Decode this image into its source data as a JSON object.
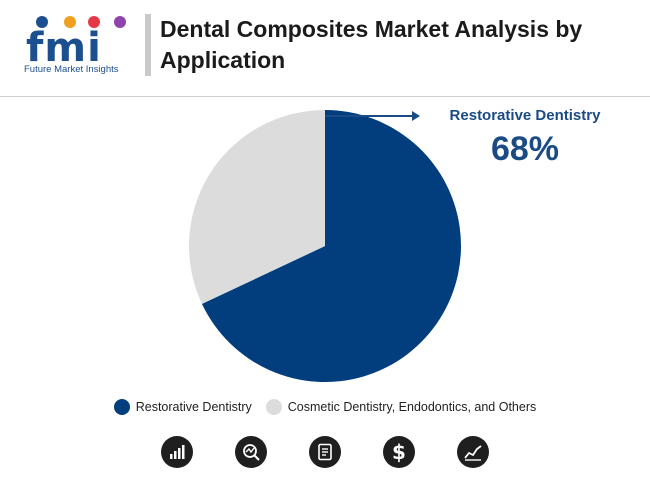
{
  "header": {
    "logo_text": "fmi",
    "logo_subtitle": "Future Market Insights",
    "title": "Dental Composites Market Analysis by Application"
  },
  "annotation": {
    "label": "Restorative Dentistry",
    "value": "68%"
  },
  "colors": {
    "restorative": "#023e7d",
    "cosmetic": "#dcdcdc",
    "accent": "#1b4b84"
  },
  "chart_data": {
    "type": "pie",
    "title": "Dental Composites Market Analysis by Application",
    "slices": [
      {
        "name": "Restorative Dentistry",
        "value": 68,
        "color": "#023e7d"
      },
      {
        "name": "Cosmetic Dentistry, Endodontics, and Others",
        "value": 32,
        "color": "#dcdcdc"
      }
    ],
    "legend_position": "bottom"
  },
  "legend": {
    "items": [
      {
        "label": "Restorative Dentistry",
        "color": "#023e7d"
      },
      {
        "label": "Cosmetic Dentistry, Endodontics, and Others",
        "color": "#dcdcdc"
      }
    ]
  },
  "footer_icons": [
    "bar-chart-icon",
    "magnifier-chart-icon",
    "document-icon",
    "dollar-icon",
    "line-chart-icon"
  ]
}
